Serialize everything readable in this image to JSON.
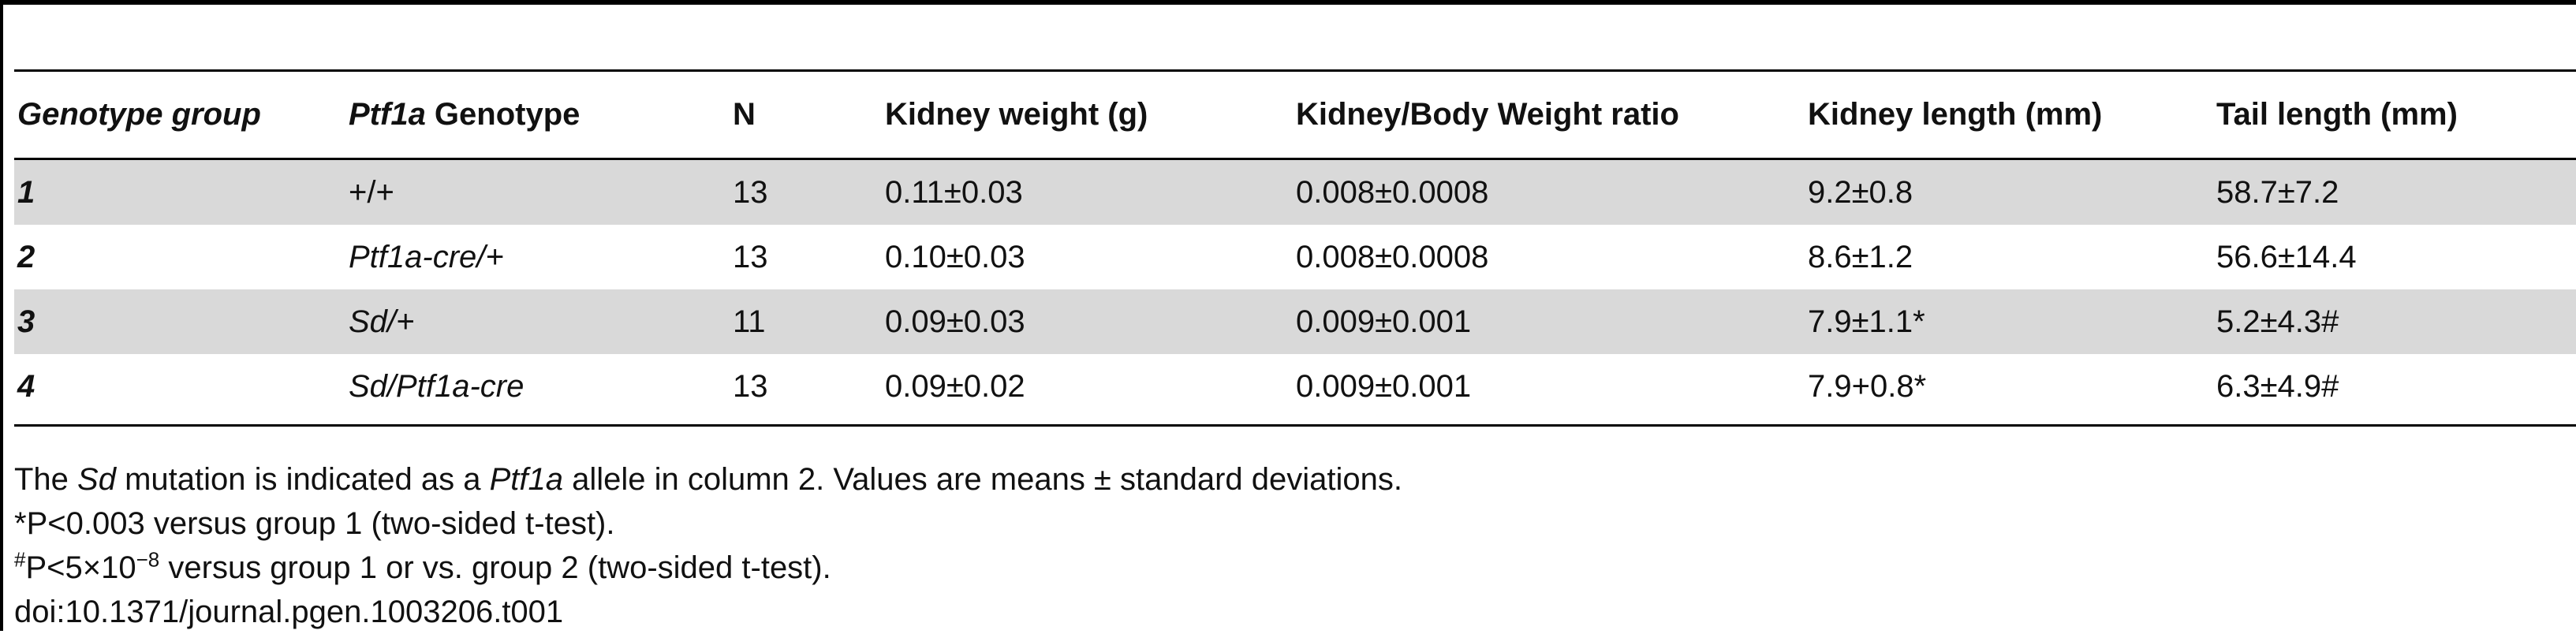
{
  "table": {
    "headers": {
      "genotype_group": "Genotype group",
      "ptf1a_genotype_italic": "Ptf1a",
      "ptf1a_genotype_rest": " Genotype",
      "n": "N",
      "kidney_weight": "Kidney weight (g)",
      "kidney_body_ratio": "Kidney/Body Weight ratio",
      "kidney_length": "Kidney length (mm)",
      "tail_length": "Tail length (mm)"
    },
    "rows": [
      {
        "group": "1",
        "genotype": "+/+",
        "n": "13",
        "kidney_weight": "0.11±0.03",
        "ratio": "0.008±0.0008",
        "kidney_length": "9.2±0.8",
        "tail_length": "58.7±7.2"
      },
      {
        "group": "2",
        "genotype": "Ptf1a-cre/+",
        "n": "13",
        "kidney_weight": "0.10±0.03",
        "ratio": "0.008±0.0008",
        "kidney_length": "8.6±1.2",
        "tail_length": "56.6±14.4"
      },
      {
        "group": "3",
        "genotype": "Sd/+",
        "n": "11",
        "kidney_weight": "0.09±0.03",
        "ratio": "0.009±0.001",
        "kidney_length": "7.9±1.1*",
        "tail_length": "5.2±4.3#"
      },
      {
        "group": "4",
        "genotype": "Sd/Ptf1a-cre",
        "n": "13",
        "kidney_weight": "0.09±0.02",
        "ratio": "0.009±0.001",
        "kidney_length": "7.9+0.8*",
        "tail_length": "6.3±4.9#"
      }
    ]
  },
  "notes": {
    "line1_a": "The ",
    "line1_sd": "Sd",
    "line1_b": " mutation is indicated as a ",
    "line1_ptf1a": "Ptf1a",
    "line1_c": " allele in column 2. Values are means ± standard deviations.",
    "line2": "*P<0.003 versus group 1 (two-sided t-test).",
    "line3_sup": "#",
    "line3_a": "P<5×10",
    "line3_exp": "−8",
    "line3_b": " versus group 1 or vs. group 2 (two-sided t-test).",
    "doi": "doi:10.1371/journal.pgen.1003206.t001"
  }
}
